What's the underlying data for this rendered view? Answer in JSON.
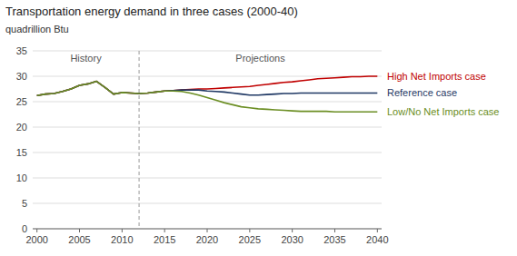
{
  "chart_data": {
    "type": "line",
    "title": "Transportation energy demand in three cases (2000-40)",
    "y_label": "quadrillion Btu",
    "annotations": [
      "History",
      "Projections"
    ],
    "divider_x": 2012,
    "xlim": [
      1999.5,
      2040.5
    ],
    "xticks": [
      2000,
      2005,
      2010,
      2015,
      2020,
      2025,
      2030,
      2035,
      2040
    ],
    "ylim": [
      0,
      35
    ],
    "yticks": [
      0,
      5,
      10,
      15,
      20,
      25,
      30,
      35
    ],
    "grid": true,
    "x": [
      2000,
      2001,
      2002,
      2003,
      2004,
      2005,
      2006,
      2007,
      2008,
      2009,
      2010,
      2011,
      2012,
      2013,
      2014,
      2015,
      2016,
      2017,
      2018,
      2019,
      2020,
      2021,
      2022,
      2023,
      2024,
      2025,
      2026,
      2027,
      2028,
      2029,
      2030,
      2031,
      2032,
      2033,
      2034,
      2035,
      2036,
      2037,
      2038,
      2039,
      2040
    ],
    "series": [
      {
        "name": "High Net Imports case",
        "color": "#c00000",
        "values": [
          26.2,
          26.5,
          26.6,
          27.0,
          27.5,
          28.2,
          28.5,
          29.0,
          27.8,
          26.5,
          26.8,
          26.7,
          26.6,
          26.7,
          26.9,
          27.1,
          27.2,
          27.3,
          27.4,
          27.5,
          27.5,
          27.6,
          27.7,
          27.8,
          27.9,
          28.0,
          28.2,
          28.4,
          28.6,
          28.8,
          28.9,
          29.1,
          29.3,
          29.5,
          29.6,
          29.7,
          29.8,
          29.9,
          29.9,
          30.0,
          30.0
        ]
      },
      {
        "name": "Reference case",
        "color": "#1f3864",
        "values": [
          26.2,
          26.5,
          26.6,
          27.0,
          27.5,
          28.2,
          28.5,
          29.0,
          27.8,
          26.5,
          26.8,
          26.7,
          26.6,
          26.7,
          26.9,
          27.1,
          27.2,
          27.3,
          27.3,
          27.3,
          27.1,
          27.0,
          26.9,
          26.7,
          26.5,
          26.3,
          26.3,
          26.4,
          26.5,
          26.6,
          26.6,
          26.7,
          26.7,
          26.7,
          26.7,
          26.7,
          26.7,
          26.7,
          26.7,
          26.7,
          26.7
        ]
      },
      {
        "name": "Low/No Net Imports case",
        "color": "#6b8e23",
        "values": [
          26.2,
          26.5,
          26.6,
          27.0,
          27.5,
          28.2,
          28.5,
          29.0,
          27.8,
          26.5,
          26.8,
          26.7,
          26.6,
          26.7,
          26.9,
          27.1,
          27.1,
          27.0,
          26.7,
          26.3,
          25.8,
          25.3,
          24.8,
          24.4,
          24.0,
          23.8,
          23.6,
          23.5,
          23.4,
          23.3,
          23.2,
          23.1,
          23.1,
          23.1,
          23.1,
          23.0,
          23.0,
          23.0,
          23.0,
          23.0,
          23.0
        ]
      }
    ]
  }
}
